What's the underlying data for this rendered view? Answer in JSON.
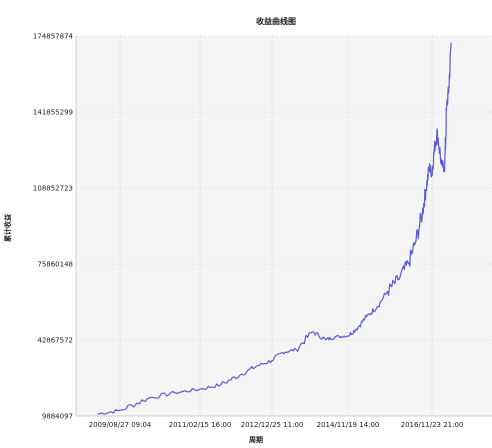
{
  "chart_data": {
    "type": "line",
    "title": "收益曲线图",
    "xlabel": "周期",
    "ylabel": "累计收益",
    "x_ticks": [
      "2009/08/27 09:04",
      "2011/02/15 16:00",
      "2012/12/25 11:00",
      "2014/11/19 14:00",
      "2016/11/23 21:00"
    ],
    "y_ticks": [
      "9884097",
      "42867572",
      "75860148",
      "108852723",
      "141855299",
      "174857874"
    ],
    "ylim": [
      9884097,
      174857874
    ],
    "grid": true,
    "colors": {
      "line": "#5b5bd6",
      "plot_bg": "#f5f5f5",
      "grid": "#dcdcdc",
      "axis": "#cfcfcf"
    },
    "series": [
      {
        "x": [
          "2009/04/01",
          "2009/08/27",
          "2010/03/01",
          "2010/09/01",
          "2011/02/15",
          "2011/09/01",
          "2012/03/01",
          "2012/08/01",
          "2012/12/25",
          "2013/04/01",
          "2013/08/01",
          "2014/01/01",
          "2014/05/01",
          "2014/08/01",
          "2014/11/19",
          "2015/02/01",
          "2015/05/01",
          "2015/08/01",
          "2015/11/01",
          "2016/02/01",
          "2016/05/01",
          "2016/07/01",
          "2016/09/01",
          "2016/10/01",
          "2016/11/01",
          "2016/11/23",
          "2016/12/15",
          "2017/01/10",
          "2017/02/15",
          "2017/03/15",
          "2017/04/01",
          "2017/04/20",
          "2017/05/10"
        ],
        "values": [
          10800000,
          12300000,
          17500000,
          20000000,
          21500000,
          23500000,
          27800000,
          31500000,
          34000000,
          37500000,
          38700000,
          46500000,
          43000000,
          44300000,
          44700000,
          47700000,
          53000000,
          57300000,
          64000000,
          69000000,
          76000000,
          85000000,
          98000000,
          108000000,
          118000000,
          115000000,
          126000000,
          133000000,
          119000000,
          117500000,
          144000000,
          152000000,
          172000000
        ]
      }
    ]
  }
}
